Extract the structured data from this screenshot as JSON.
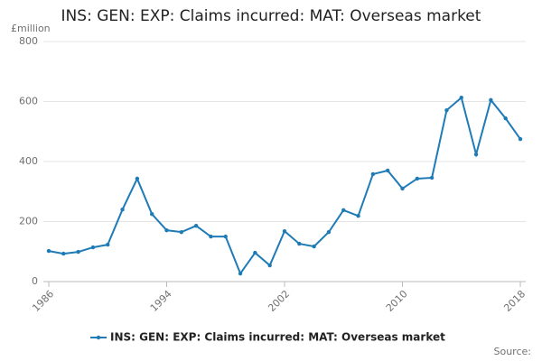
{
  "chart_data": {
    "type": "line",
    "title": "INS: GEN: EXP: Claims incurred: MAT: Overseas market",
    "y_label": "£million",
    "source": "Source:",
    "x": [
      1986,
      1987,
      1988,
      1989,
      1990,
      1991,
      1992,
      1993,
      1994,
      1995,
      1996,
      1997,
      1998,
      1999,
      2000,
      2001,
      2002,
      2003,
      2004,
      2005,
      2006,
      2007,
      2008,
      2009,
      2010,
      2011,
      2012,
      2013,
      2014,
      2015,
      2016,
      2017,
      2018
    ],
    "series": [
      {
        "name": "INS: GEN: EXP: Claims incurred: MAT: Overseas market",
        "color": "#1f7bb6",
        "values": [
          102,
          93,
          99,
          114,
          123,
          240,
          343,
          225,
          171,
          165,
          186,
          150,
          150,
          27,
          96,
          54,
          168,
          126,
          117,
          165,
          238,
          219,
          358,
          370,
          310,
          343,
          346,
          571,
          613,
          424,
          605,
          544,
          475
        ]
      }
    ],
    "xlim": [
      1986,
      2018
    ],
    "xticks": [
      1986,
      1994,
      2002,
      2010,
      2018
    ],
    "ylim": [
      0,
      800
    ],
    "yticks": [
      0,
      200,
      400,
      600,
      800
    ],
    "grid": true,
    "legend": "bottom"
  }
}
